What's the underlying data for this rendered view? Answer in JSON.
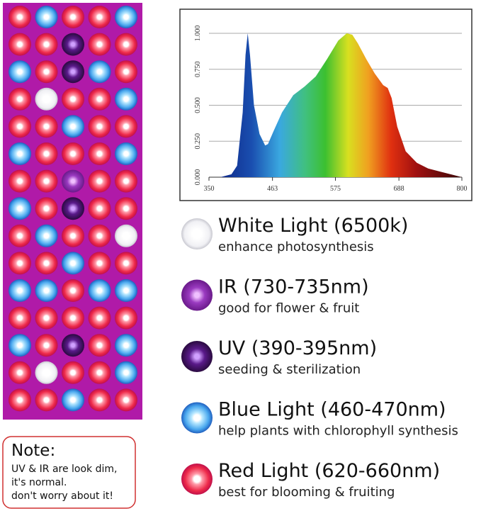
{
  "chart_data": {
    "type": "area",
    "x": [
      370,
      390,
      400,
      410,
      415,
      419,
      423,
      430,
      440,
      450,
      455,
      465,
      480,
      500,
      520,
      540,
      560,
      580,
      595,
      605,
      615,
      630,
      645,
      660,
      668,
      675,
      685,
      700,
      720,
      740,
      760,
      780,
      800
    ],
    "values": [
      0,
      0.02,
      0.08,
      0.45,
      0.85,
      1.0,
      0.85,
      0.5,
      0.3,
      0.22,
      0.23,
      0.32,
      0.45,
      0.57,
      0.63,
      0.7,
      0.82,
      0.95,
      1.0,
      0.99,
      0.93,
      0.82,
      0.72,
      0.64,
      0.62,
      0.55,
      0.35,
      0.18,
      0.1,
      0.06,
      0.04,
      0.02,
      0
    ],
    "xlim": [
      350,
      800
    ],
    "xticks": [
      350,
      463,
      575,
      688,
      800
    ],
    "ylim": [
      0,
      1.0
    ],
    "yticks": [
      {
        "value": 0,
        "label": "0.000"
      },
      {
        "value": 0.25,
        "label": "0.250"
      },
      {
        "value": 0.5,
        "label": "0.500"
      },
      {
        "value": 0.75,
        "label": "0.750"
      },
      {
        "value": 1.0,
        "label": "1.000"
      }
    ],
    "grid": true
  },
  "legend_items": [
    {
      "title": "White Light (6500k)",
      "subtitle": "enhance photosynthesis"
    },
    {
      "title": "IR (730-735nm)",
      "subtitle": "good for flower & fruit"
    },
    {
      "title": "UV (390-395nm)",
      "subtitle": "seeding & sterilization"
    },
    {
      "title": "Blue Light (460-470nm)",
      "subtitle": "help plants with chlorophyll synthesis"
    },
    {
      "title": "Red Light (620-660nm)",
      "subtitle": "best for blooming & fruiting"
    }
  ],
  "note": {
    "title": "Note:",
    "lines": [
      "UV & IR are look dim,",
      "it's normal.",
      "don't worry about it!"
    ]
  }
}
